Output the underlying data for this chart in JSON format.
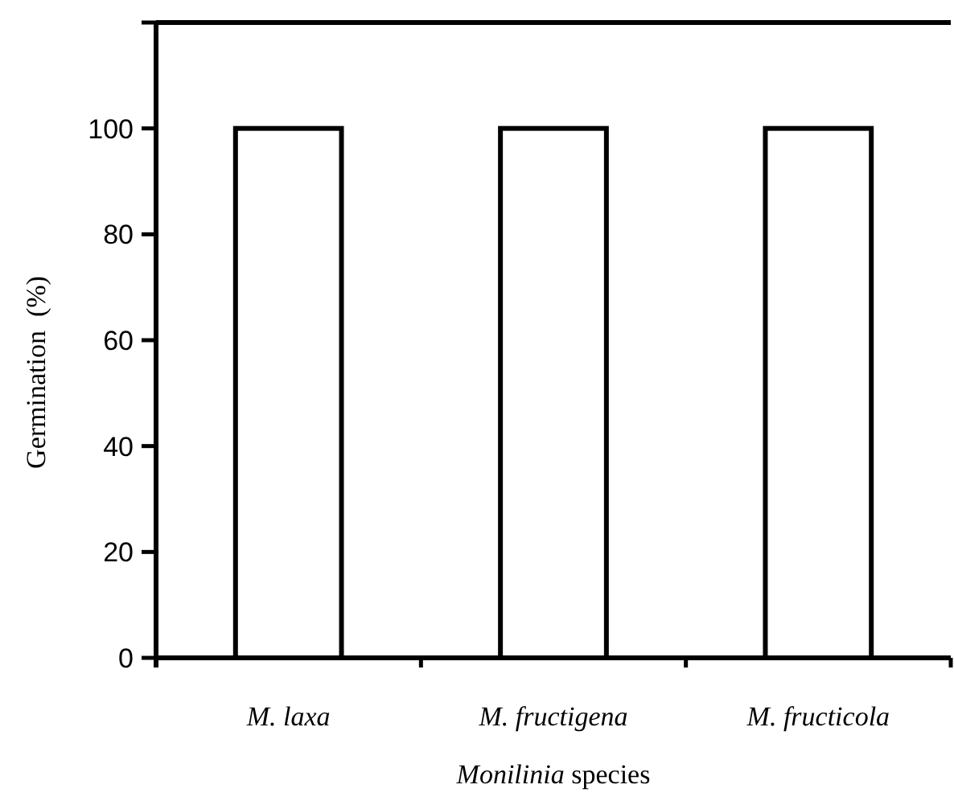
{
  "chart_data": {
    "type": "bar",
    "xlabel": "Monilinia species",
    "ylabel": "Germination  (%)",
    "categories": [
      "M. laxa",
      "M. fructigena",
      "M. fructicola"
    ],
    "values": [
      100,
      100,
      100
    ],
    "color": "#ffffff",
    "ylim": [
      0,
      120
    ],
    "yticks": [
      0,
      20,
      40,
      60,
      80,
      100,
      {
        "value": 120,
        "label": null
      }
    ],
    "grid": false
  }
}
